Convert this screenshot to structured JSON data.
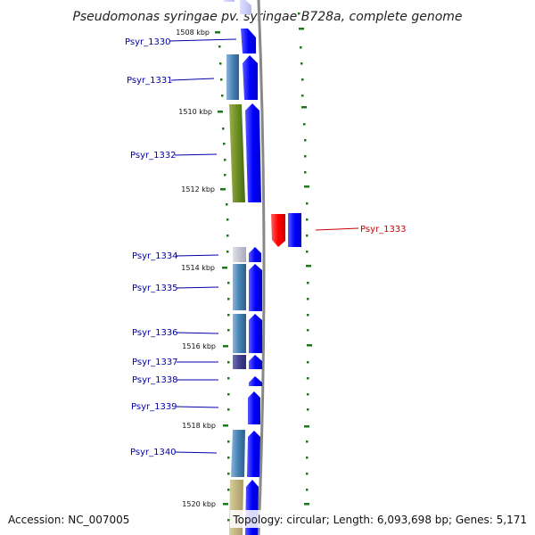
{
  "title": "Pseudomonas syringae pv. syringae B728a, complete genome",
  "footer": {
    "accession": "Accession: NC_007005",
    "topology": "Topology: circular; Length: 6,093,698 bp; Genes: 5,171"
  },
  "ruler": {
    "ticks": [
      "1508 kbp",
      "1510 kbp",
      "1512 kbp",
      "1514 kbp",
      "1516 kbp",
      "1518 kbp",
      "1520 kbp"
    ]
  },
  "colors": {
    "cds": "#0000ff",
    "cds_highlight": "#ff0000",
    "label": "#0000aa",
    "label_highlight": "#cc0000",
    "ruler": "#1a7a1a",
    "backbone": "#888888"
  },
  "genes": [
    {
      "label": "Psyr_1330",
      "strand": "+"
    },
    {
      "label": "Psyr_1331",
      "strand": "+"
    },
    {
      "label": "Psyr_1332",
      "strand": "+"
    },
    {
      "label": "Psyr_1333",
      "strand": "-",
      "highlight": true
    },
    {
      "label": "Psyr_1334",
      "strand": "+"
    },
    {
      "label": "Psyr_1335",
      "strand": "+"
    },
    {
      "label": "Psyr_1336",
      "strand": "+"
    },
    {
      "label": "Psyr_1337",
      "strand": "+"
    },
    {
      "label": "Psyr_1338",
      "strand": "+"
    },
    {
      "label": "Psyr_1339",
      "strand": "+"
    },
    {
      "label": "Psyr_1340",
      "strand": "+"
    }
  ]
}
